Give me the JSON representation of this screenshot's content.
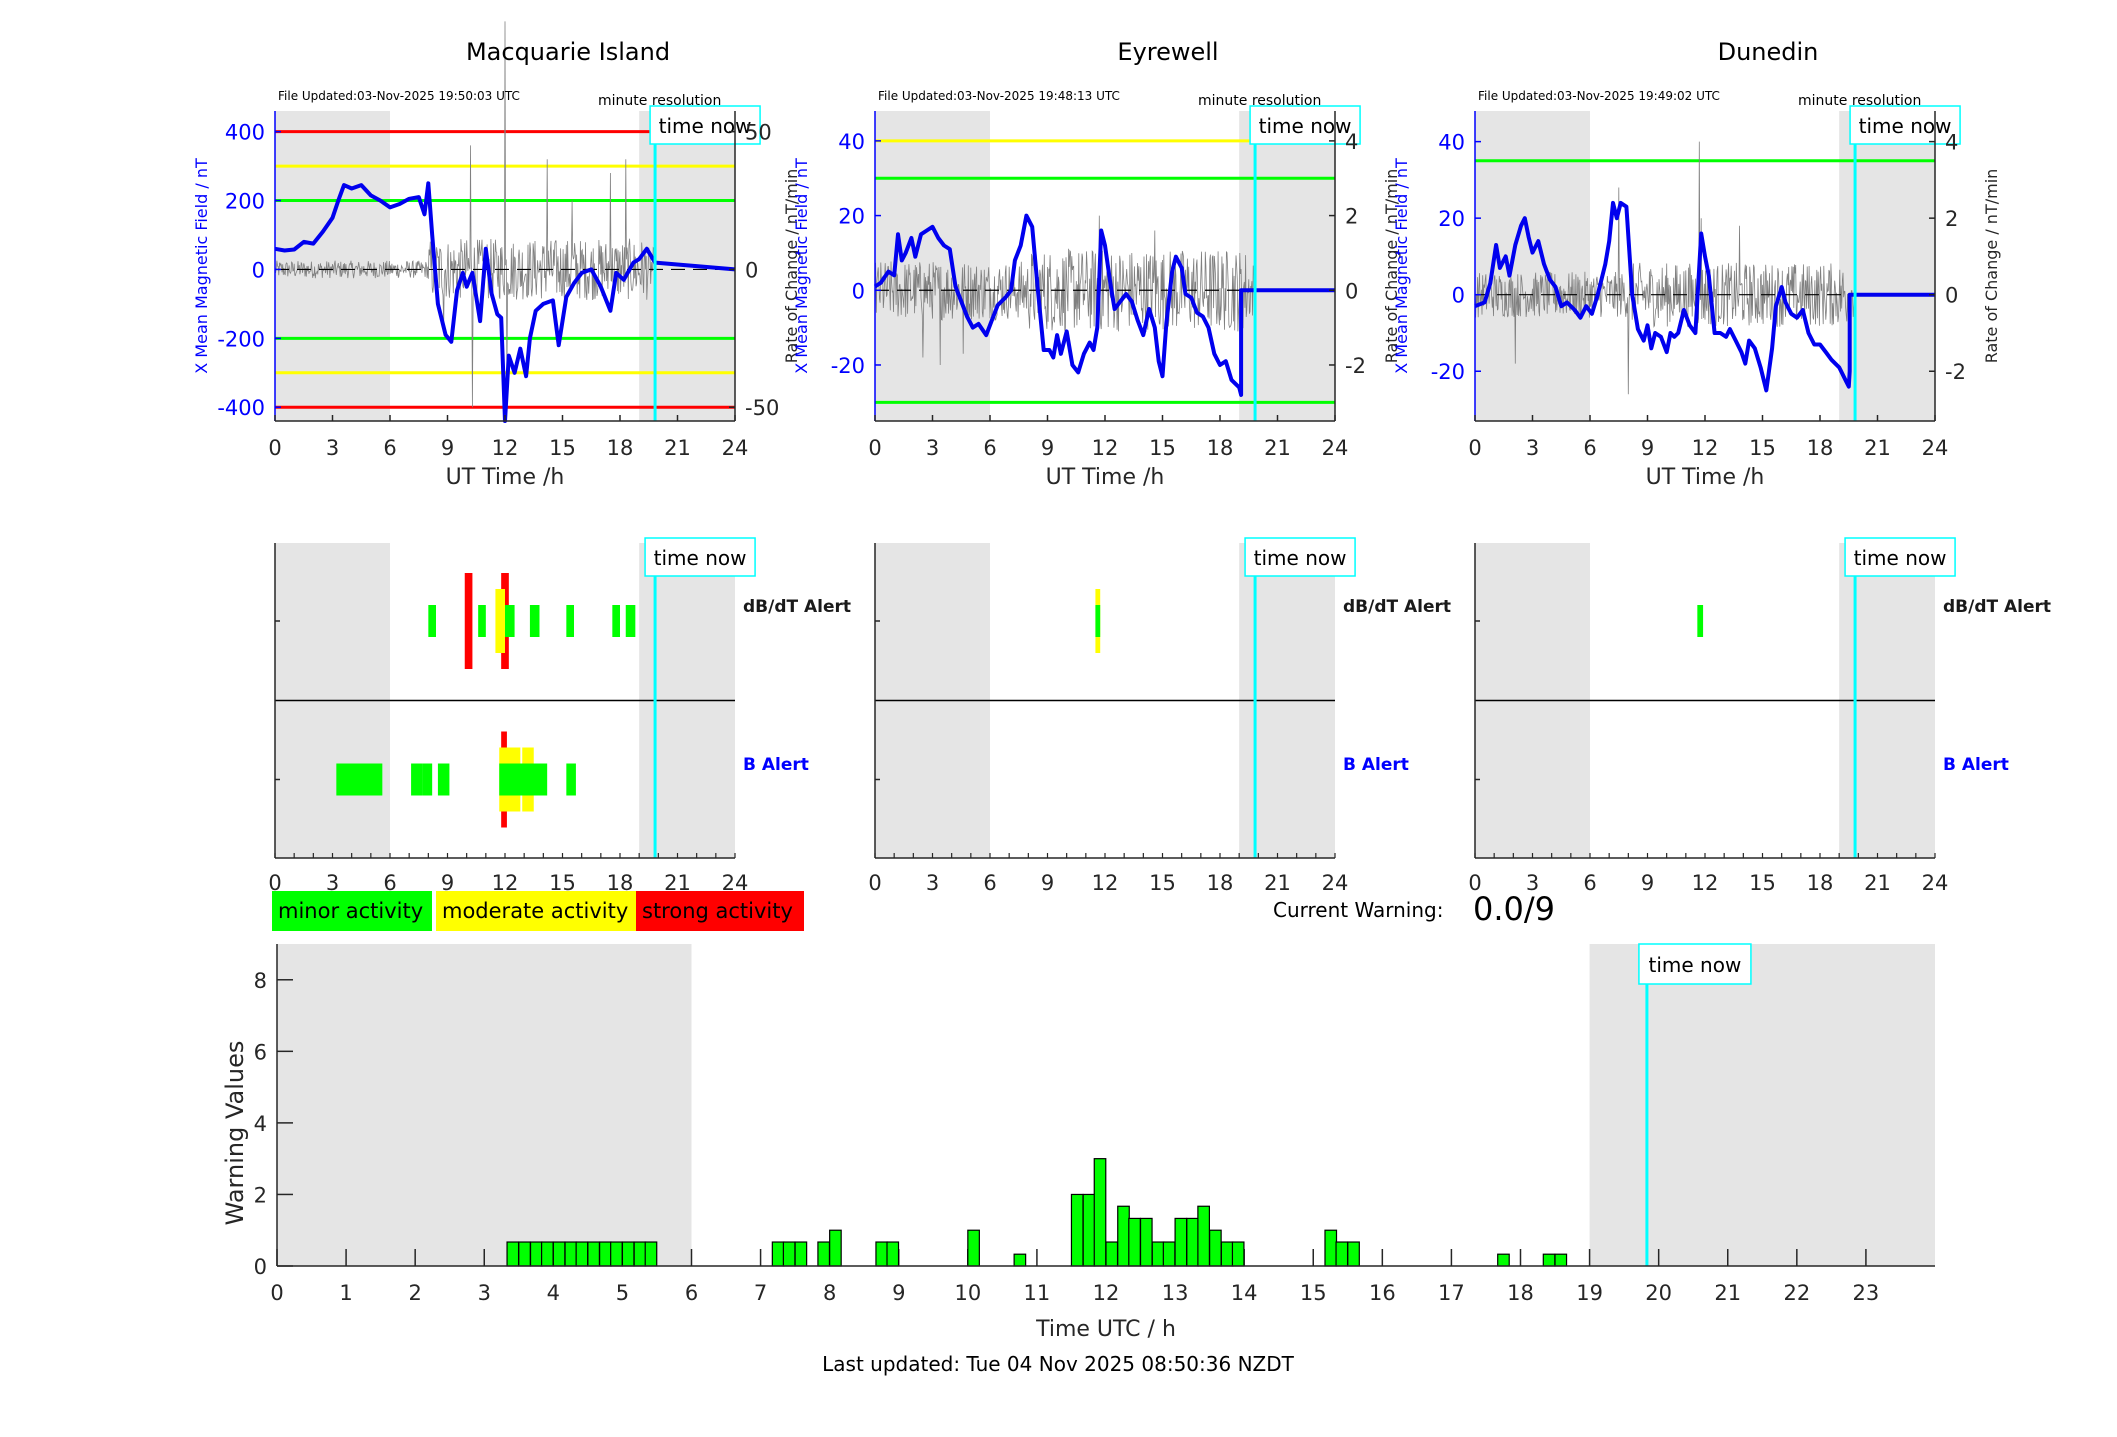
{
  "colors": {
    "minor": "#00ff00",
    "moderate": "#ffff00",
    "strong": "#ff0000",
    "field": "#0000ee",
    "now": "#00ffff",
    "night": "#e5e5e5",
    "roc": "#808080"
  },
  "stations": [
    {
      "name": "Macquarie Island",
      "file_updated": "File Updated:03-Nov-2025 19:50:03 UTC",
      "resolution": "minute resolution",
      "time_now_label": "time now",
      "left_ylabel": "X Mean Magnetic Field / nT",
      "right_ylabel": "Rate of Change / nT/min",
      "xlabel": "UT Time /h",
      "ylim_left": [
        -440,
        460
      ],
      "yticks_left": [
        -400,
        -200,
        0,
        200,
        400
      ],
      "ylim_right": [
        -55,
        57.5
      ],
      "yticks_right": [
        -50,
        0,
        50
      ],
      "thresholds_left": [
        {
          "v": 400,
          "c": "strong"
        },
        {
          "v": 300,
          "c": "moderate"
        },
        {
          "v": 200,
          "c": "minor"
        },
        {
          "v": -200,
          "c": "minor"
        },
        {
          "v": -300,
          "c": "moderate"
        },
        {
          "v": -400,
          "c": "strong"
        }
      ],
      "field_trace": [
        [
          0,
          60
        ],
        [
          0.5,
          55
        ],
        [
          1,
          58
        ],
        [
          1.5,
          80
        ],
        [
          2,
          75
        ],
        [
          2.5,
          110
        ],
        [
          3,
          150
        ],
        [
          3.3,
          200
        ],
        [
          3.6,
          245
        ],
        [
          4,
          235
        ],
        [
          4.5,
          245
        ],
        [
          5,
          215
        ],
        [
          5.5,
          200
        ],
        [
          6,
          180
        ],
        [
          6.5,
          190
        ],
        [
          7,
          205
        ],
        [
          7.5,
          210
        ],
        [
          7.8,
          160
        ],
        [
          8,
          250
        ],
        [
          8.2,
          100
        ],
        [
          8.5,
          -100
        ],
        [
          8.9,
          -190
        ],
        [
          9.2,
          -210
        ],
        [
          9.5,
          -60
        ],
        [
          9.8,
          -10
        ],
        [
          10,
          -50
        ],
        [
          10.3,
          -10
        ],
        [
          10.7,
          -150
        ],
        [
          11,
          60
        ],
        [
          11.3,
          -70
        ],
        [
          11.6,
          -130
        ],
        [
          11.8,
          -140
        ],
        [
          12,
          -440
        ],
        [
          12.2,
          -250
        ],
        [
          12.5,
          -300
        ],
        [
          12.8,
          -230
        ],
        [
          13.1,
          -310
        ],
        [
          13.3,
          -200
        ],
        [
          13.6,
          -120
        ],
        [
          14,
          -100
        ],
        [
          14.5,
          -90
        ],
        [
          14.8,
          -220
        ],
        [
          15.2,
          -80
        ],
        [
          15.6,
          -40
        ],
        [
          16,
          -10
        ],
        [
          16.5,
          0
        ],
        [
          17,
          -50
        ],
        [
          17.5,
          -120
        ],
        [
          17.8,
          -10
        ],
        [
          18.2,
          -30
        ],
        [
          18.7,
          20
        ],
        [
          19,
          30
        ],
        [
          19.4,
          60
        ],
        [
          19.83,
          20
        ],
        [
          24,
          0
        ]
      ],
      "roc_amplitude": 8,
      "roc_spikes": [
        [
          8.8,
          -20
        ],
        [
          10.2,
          45
        ],
        [
          10.3,
          -50
        ],
        [
          12,
          90
        ],
        [
          12.1,
          -40
        ],
        [
          14.2,
          40
        ],
        [
          17.5,
          35
        ],
        [
          18.3,
          40
        ],
        [
          15.5,
          25
        ]
      ],
      "dbdt_alerts": [
        {
          "t0": 8.0,
          "t1": 8.4,
          "level": 1
        },
        {
          "t0": 9.9,
          "t1": 10.3,
          "level": 3
        },
        {
          "t0": 10.6,
          "t1": 11.0,
          "level": 1
        },
        {
          "t0": 11.5,
          "t1": 12.0,
          "level": 2
        },
        {
          "t0": 12.0,
          "t1": 12.5,
          "level": 1
        },
        {
          "t0": 11.8,
          "t1": 12.2,
          "level": 3
        },
        {
          "t0": 13.3,
          "t1": 13.8,
          "level": 1
        },
        {
          "t0": 15.2,
          "t1": 15.6,
          "level": 1
        },
        {
          "t0": 17.6,
          "t1": 18.0,
          "level": 1
        },
        {
          "t0": 18.3,
          "t1": 18.8,
          "level": 1
        }
      ],
      "b_alerts": [
        {
          "t0": 3.2,
          "t1": 5.6,
          "level": 1
        },
        {
          "t0": 7.1,
          "t1": 7.7,
          "level": 1
        },
        {
          "t0": 7.7,
          "t1": 8.2,
          "level": 1
        },
        {
          "t0": 8.5,
          "t1": 9.1,
          "level": 1
        },
        {
          "t0": 11.7,
          "t1": 12.8,
          "level": 2
        },
        {
          "t0": 12.9,
          "t1": 13.5,
          "level": 2
        },
        {
          "t0": 11.7,
          "t1": 14.2,
          "level": 1
        },
        {
          "t0": 11.8,
          "t1": 12.1,
          "level": 3
        },
        {
          "t0": 15.2,
          "t1": 15.7,
          "level": 1
        }
      ]
    },
    {
      "name": "Eyrewell",
      "file_updated": "File Updated:03-Nov-2025 19:48:13 UTC",
      "resolution": "minute resolution",
      "time_now_label": "time now",
      "left_ylabel": "X Mean Magnetic Field / nT",
      "right_ylabel": "Rate of Change / nT/min",
      "xlabel": "UT Time /h",
      "ylim_left": [
        -35,
        48
      ],
      "yticks_left": [
        -20,
        0,
        20,
        40
      ],
      "ylim_right": [
        -3.5,
        4.8
      ],
      "yticks_right": [
        -2,
        0,
        2,
        4
      ],
      "thresholds_left": [
        {
          "v": 40,
          "c": "moderate"
        },
        {
          "v": 30,
          "c": "minor"
        },
        {
          "v": -30,
          "c": "minor"
        }
      ],
      "field_trace": [
        [
          0,
          1
        ],
        [
          0.3,
          2
        ],
        [
          0.7,
          5
        ],
        [
          1,
          4
        ],
        [
          1.2,
          15
        ],
        [
          1.4,
          8
        ],
        [
          1.6,
          10
        ],
        [
          1.9,
          14
        ],
        [
          2.1,
          9
        ],
        [
          2.4,
          15
        ],
        [
          2.7,
          16
        ],
        [
          3,
          17
        ],
        [
          3.3,
          14
        ],
        [
          3.6,
          12
        ],
        [
          3.9,
          11
        ],
        [
          4.2,
          1
        ],
        [
          4.5,
          -3
        ],
        [
          4.8,
          -7
        ],
        [
          5.1,
          -10
        ],
        [
          5.4,
          -9
        ],
        [
          5.8,
          -12
        ],
        [
          6.1,
          -8
        ],
        [
          6.4,
          -4
        ],
        [
          6.8,
          -2
        ],
        [
          7.1,
          0
        ],
        [
          7.3,
          8
        ],
        [
          7.6,
          12
        ],
        [
          7.9,
          20
        ],
        [
          8.2,
          17
        ],
        [
          8.5,
          0
        ],
        [
          8.8,
          -16
        ],
        [
          9.1,
          -16
        ],
        [
          9.3,
          -18
        ],
        [
          9.5,
          -12
        ],
        [
          9.7,
          -17
        ],
        [
          10,
          -11
        ],
        [
          10.3,
          -20
        ],
        [
          10.6,
          -22
        ],
        [
          10.9,
          -17
        ],
        [
          11.2,
          -14
        ],
        [
          11.4,
          -16
        ],
        [
          11.6,
          -10
        ],
        [
          11.8,
          16
        ],
        [
          12,
          12
        ],
        [
          12.3,
          1
        ],
        [
          12.5,
          -5
        ],
        [
          12.8,
          -3
        ],
        [
          13.1,
          -1
        ],
        [
          13.4,
          -3
        ],
        [
          13.7,
          -8
        ],
        [
          14,
          -12
        ],
        [
          14.3,
          -5
        ],
        [
          14.6,
          -10
        ],
        [
          14.8,
          -19
        ],
        [
          15,
          -23
        ],
        [
          15.2,
          -9
        ],
        [
          15.5,
          5
        ],
        [
          15.7,
          9
        ],
        [
          16,
          6
        ],
        [
          16.2,
          -1
        ],
        [
          16.5,
          -2
        ],
        [
          16.8,
          -6
        ],
        [
          17.1,
          -7
        ],
        [
          17.4,
          -10
        ],
        [
          17.7,
          -17
        ],
        [
          18,
          -20
        ],
        [
          18.3,
          -19
        ],
        [
          18.6,
          -24
        ],
        [
          19,
          -26
        ],
        [
          19.1,
          -28
        ],
        [
          19.1,
          0
        ],
        [
          24,
          0
        ]
      ],
      "roc_amplitude": 0.8,
      "roc_spikes": [
        [
          11.65,
          4.2
        ],
        [
          11.7,
          2
        ],
        [
          3.4,
          -2
        ],
        [
          2.5,
          -1.8
        ],
        [
          14.6,
          1.6
        ],
        [
          4.6,
          -1.7
        ]
      ],
      "dbdt_alerts": [
        {
          "t0": 11.5,
          "t1": 11.75,
          "level": 2
        },
        {
          "t0": 11.5,
          "t1": 11.75,
          "level": 1
        }
      ],
      "b_alerts": []
    },
    {
      "name": "Dunedin",
      "file_updated": "File Updated:03-Nov-2025 19:49:02 UTC",
      "resolution": "minute resolution",
      "time_now_label": "time now",
      "left_ylabel": "X Mean Magnetic Field / nT",
      "right_ylabel": "Rate of Change / nT/min",
      "xlabel": "UT Time /h",
      "ylim_left": [
        -33,
        48
      ],
      "yticks_left": [
        -20,
        0,
        20,
        40
      ],
      "ylim_right": [
        -3.3,
        4.8
      ],
      "yticks_right": [
        -2,
        0,
        2,
        4
      ],
      "thresholds_left": [
        {
          "v": 35,
          "c": "minor"
        }
      ],
      "field_trace": [
        [
          0,
          -3
        ],
        [
          0.5,
          -2
        ],
        [
          0.8,
          3
        ],
        [
          1.1,
          13
        ],
        [
          1.3,
          7
        ],
        [
          1.6,
          10
        ],
        [
          1.8,
          5
        ],
        [
          2.1,
          13
        ],
        [
          2.4,
          18
        ],
        [
          2.6,
          20
        ],
        [
          2.8,
          15
        ],
        [
          3,
          11
        ],
        [
          3.3,
          14
        ],
        [
          3.6,
          8
        ],
        [
          3.9,
          4
        ],
        [
          4.2,
          2
        ],
        [
          4.5,
          -3
        ],
        [
          4.8,
          -2
        ],
        [
          5.2,
          -4
        ],
        [
          5.5,
          -6
        ],
        [
          5.8,
          -3
        ],
        [
          6.1,
          -5
        ],
        [
          6.4,
          0
        ],
        [
          6.8,
          8
        ],
        [
          7,
          14
        ],
        [
          7.2,
          24
        ],
        [
          7.4,
          20
        ],
        [
          7.6,
          24
        ],
        [
          7.9,
          23
        ],
        [
          8.2,
          0
        ],
        [
          8.5,
          -9
        ],
        [
          8.8,
          -12
        ],
        [
          9,
          -8
        ],
        [
          9.2,
          -14
        ],
        [
          9.4,
          -10
        ],
        [
          9.7,
          -11
        ],
        [
          10,
          -15
        ],
        [
          10.2,
          -10
        ],
        [
          10.4,
          -11
        ],
        [
          10.6,
          -10
        ],
        [
          10.9,
          -4
        ],
        [
          11.2,
          -8
        ],
        [
          11.5,
          -10
        ],
        [
          11.8,
          16
        ],
        [
          12,
          10
        ],
        [
          12.2,
          5
        ],
        [
          12.5,
          -10
        ],
        [
          12.8,
          -10
        ],
        [
          13.1,
          -11
        ],
        [
          13.3,
          -9
        ],
        [
          13.6,
          -12
        ],
        [
          13.9,
          -15
        ],
        [
          14.1,
          -18
        ],
        [
          14.3,
          -12
        ],
        [
          14.6,
          -14
        ],
        [
          14.9,
          -19
        ],
        [
          15.2,
          -25
        ],
        [
          15.5,
          -14
        ],
        [
          15.7,
          -3
        ],
        [
          16,
          2
        ],
        [
          16.2,
          -2
        ],
        [
          16.5,
          -5
        ],
        [
          16.8,
          -6
        ],
        [
          17.1,
          -4
        ],
        [
          17.4,
          -10
        ],
        [
          17.7,
          -13
        ],
        [
          18,
          -13
        ],
        [
          18.3,
          -15
        ],
        [
          18.6,
          -17
        ],
        [
          19,
          -19
        ],
        [
          19.3,
          -22
        ],
        [
          19.5,
          -24
        ],
        [
          19.55,
          -20
        ],
        [
          19.55,
          0
        ],
        [
          24,
          0
        ]
      ],
      "roc_amplitude": 0.6,
      "roc_spikes": [
        [
          11.7,
          4
        ],
        [
          11.8,
          2
        ],
        [
          7.5,
          2.8
        ],
        [
          8,
          -2.6
        ],
        [
          13.8,
          1.8
        ],
        [
          2.1,
          -1.8
        ]
      ],
      "dbdt_alerts": [
        {
          "t0": 11.6,
          "t1": 11.9,
          "level": 1
        }
      ],
      "b_alerts": []
    }
  ],
  "alert_panel": {
    "dbdt_label": "dB/dT Alert",
    "b_label": "B Alert",
    "time_now_label": "time now"
  },
  "shared": {
    "time_now_h": 19.83,
    "night_ranges": [
      [
        0,
        6
      ],
      [
        19,
        24
      ]
    ],
    "xticks": [
      0,
      3,
      6,
      9,
      12,
      15,
      18,
      21,
      24
    ]
  },
  "legend": [
    {
      "label": "minor activity",
      "level": "minor"
    },
    {
      "label": "moderate activity",
      "level": "moderate"
    },
    {
      "label": "strong activity",
      "level": "strong"
    }
  ],
  "current_warning": {
    "label": "Current Warning:",
    "value": "0.0/9"
  },
  "chart_data": {
    "type": "bar",
    "title": "",
    "xlabel": "Time UTC / h",
    "ylabel": "Warning Values",
    "xlim": [
      0,
      24
    ],
    "ylim": [
      0,
      9
    ],
    "xticks": [
      0,
      1,
      2,
      3,
      4,
      5,
      6,
      7,
      8,
      9,
      10,
      11,
      12,
      13,
      14,
      15,
      16,
      17,
      18,
      19,
      20,
      21,
      22,
      23
    ],
    "yticks": [
      0,
      2,
      4,
      6,
      8
    ],
    "bin_width_h": 0.1667,
    "time_now_h": 19.83,
    "time_now_label": "time now",
    "night_ranges": [
      [
        0,
        6
      ],
      [
        19,
        24
      ]
    ],
    "bars": [
      {
        "t": 3.33,
        "v": 0.67
      },
      {
        "t": 3.5,
        "v": 0.67
      },
      {
        "t": 3.67,
        "v": 0.67
      },
      {
        "t": 3.83,
        "v": 0.67
      },
      {
        "t": 4.0,
        "v": 0.67
      },
      {
        "t": 4.17,
        "v": 0.67
      },
      {
        "t": 4.33,
        "v": 0.67
      },
      {
        "t": 4.5,
        "v": 0.67
      },
      {
        "t": 4.67,
        "v": 0.67
      },
      {
        "t": 4.83,
        "v": 0.67
      },
      {
        "t": 5.0,
        "v": 0.67
      },
      {
        "t": 5.17,
        "v": 0.67
      },
      {
        "t": 5.33,
        "v": 0.67
      },
      {
        "t": 7.17,
        "v": 0.67
      },
      {
        "t": 7.33,
        "v": 0.67
      },
      {
        "t": 7.5,
        "v": 0.67
      },
      {
        "t": 7.83,
        "v": 0.67
      },
      {
        "t": 8.0,
        "v": 1.0
      },
      {
        "t": 8.67,
        "v": 0.67
      },
      {
        "t": 8.83,
        "v": 0.67
      },
      {
        "t": 10.0,
        "v": 1.0
      },
      {
        "t": 10.67,
        "v": 0.33
      },
      {
        "t": 11.5,
        "v": 2.0
      },
      {
        "t": 11.67,
        "v": 2.0
      },
      {
        "t": 11.83,
        "v": 3.0
      },
      {
        "t": 12.0,
        "v": 0.67
      },
      {
        "t": 12.17,
        "v": 1.67
      },
      {
        "t": 12.33,
        "v": 1.33
      },
      {
        "t": 12.5,
        "v": 1.33
      },
      {
        "t": 12.67,
        "v": 0.67
      },
      {
        "t": 12.83,
        "v": 0.67
      },
      {
        "t": 13.0,
        "v": 1.33
      },
      {
        "t": 13.17,
        "v": 1.33
      },
      {
        "t": 13.33,
        "v": 1.67
      },
      {
        "t": 13.5,
        "v": 1.0
      },
      {
        "t": 13.67,
        "v": 0.67
      },
      {
        "t": 13.83,
        "v": 0.67
      },
      {
        "t": 15.17,
        "v": 1.0
      },
      {
        "t": 15.33,
        "v": 0.67
      },
      {
        "t": 15.5,
        "v": 0.67
      },
      {
        "t": 17.67,
        "v": 0.33
      },
      {
        "t": 18.33,
        "v": 0.33
      },
      {
        "t": 18.5,
        "v": 0.33
      }
    ]
  },
  "footer": {
    "last_updated": "Last updated: Tue 04 Nov 2025 08:50:36 NZDT"
  }
}
